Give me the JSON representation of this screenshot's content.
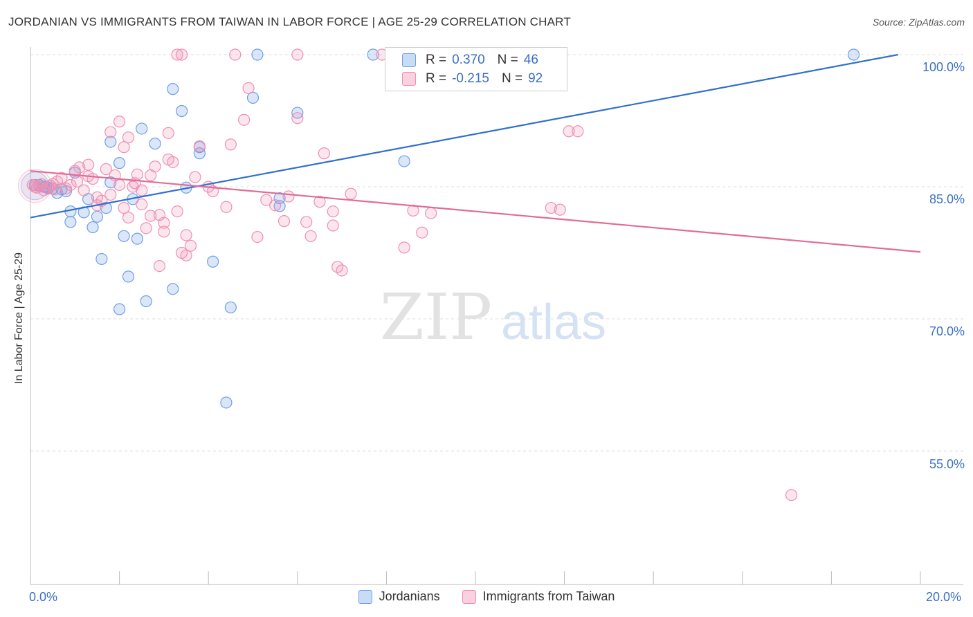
{
  "header": {
    "title": "JORDANIAN VS IMMIGRANTS FROM TAIWAN IN LABOR FORCE | AGE 25-29 CORRELATION CHART",
    "source": "Source: ZipAtlas.com"
  },
  "watermark": {
    "zip": "ZIP",
    "atlas": "atlas"
  },
  "legend": {
    "rows": [
      {
        "r_label": "R =",
        "r_value": "0.370",
        "n_label": "N =",
        "n_value": "46",
        "color": "#6f9fe6"
      },
      {
        "r_label": "R =",
        "r_value": "-0.215",
        "n_label": "N =",
        "n_value": "92",
        "color": "#f08fb0"
      }
    ]
  },
  "bottom_legend": {
    "series1": "Jordanians",
    "series2": "Immigrants from Taiwan"
  },
  "axes": {
    "x_min_label": "0.0%",
    "x_max_label": "20.0%",
    "y_ticks": [
      "100.0%",
      "85.0%",
      "70.0%",
      "55.0%"
    ],
    "ylabel": "In Labor Force | Age 25-29"
  },
  "chart_data": {
    "type": "scatter",
    "title": "JORDANIAN VS IMMIGRANTS FROM TAIWAN IN LABOR FORCE | AGE 25-29 CORRELATION CHART",
    "xlabel": "",
    "ylabel": "In Labor Force | Age 25-29",
    "xlim": [
      0,
      20
    ],
    "ylim": [
      40,
      101
    ],
    "y_gridlines": [
      100,
      85,
      70,
      55
    ],
    "series": [
      {
        "name": "Jordanians",
        "color": "#6f9fe6",
        "trend": {
          "x": [
            0,
            19.5
          ],
          "y": [
            81.5,
            100.0
          ]
        },
        "points": [
          [
            0.1,
            85.2
          ],
          [
            0.3,
            85.0
          ],
          [
            0.4,
            84.9
          ],
          [
            0.5,
            84.8
          ],
          [
            0.6,
            84.3
          ],
          [
            0.7,
            84.7
          ],
          [
            0.8,
            84.5
          ],
          [
            0.9,
            82.2
          ],
          [
            0.9,
            81.0
          ],
          [
            1.0,
            86.6
          ],
          [
            1.2,
            82.1
          ],
          [
            1.3,
            83.6
          ],
          [
            1.4,
            80.4
          ],
          [
            1.5,
            81.6
          ],
          [
            1.6,
            76.8
          ],
          [
            1.7,
            82.6
          ],
          [
            1.8,
            85.5
          ],
          [
            1.8,
            90.1
          ],
          [
            2.0,
            71.1
          ],
          [
            2.0,
            87.7
          ],
          [
            2.1,
            79.4
          ],
          [
            2.2,
            74.8
          ],
          [
            2.3,
            83.6
          ],
          [
            2.4,
            79.1
          ],
          [
            2.5,
            91.6
          ],
          [
            2.6,
            72.0
          ],
          [
            2.8,
            89.9
          ],
          [
            3.2,
            96.1
          ],
          [
            3.2,
            73.4
          ],
          [
            3.4,
            93.6
          ],
          [
            3.5,
            84.9
          ],
          [
            3.8,
            88.8
          ],
          [
            3.8,
            89.5
          ],
          [
            4.1,
            76.5
          ],
          [
            4.4,
            60.5
          ],
          [
            4.5,
            71.3
          ],
          [
            5.0,
            95.1
          ],
          [
            5.1,
            100.0
          ],
          [
            5.6,
            83.7
          ],
          [
            5.6,
            82.8
          ],
          [
            6.0,
            93.4
          ],
          [
            7.7,
            100.0
          ],
          [
            8.4,
            87.9
          ],
          [
            18.5,
            100.0
          ],
          [
            0.2,
            85.2
          ],
          [
            0.35,
            85.0
          ]
        ]
      },
      {
        "name": "Immigrants from Taiwan",
        "color": "#f08fb0",
        "trend": {
          "x": [
            0,
            20
          ],
          "y": [
            86.8,
            77.6
          ]
        },
        "points": [
          [
            0.05,
            85.2
          ],
          [
            0.1,
            85.0
          ],
          [
            0.2,
            85.1
          ],
          [
            0.3,
            84.6
          ],
          [
            0.4,
            84.8
          ],
          [
            0.5,
            85.3
          ],
          [
            0.6,
            85.6
          ],
          [
            0.7,
            86.0
          ],
          [
            0.8,
            84.8
          ],
          [
            0.9,
            85.2
          ],
          [
            1.0,
            86.8
          ],
          [
            1.1,
            87.2
          ],
          [
            1.2,
            84.6
          ],
          [
            1.3,
            86.2
          ],
          [
            1.3,
            87.5
          ],
          [
            1.4,
            85.9
          ],
          [
            1.5,
            82.9
          ],
          [
            1.5,
            83.8
          ],
          [
            1.6,
            83.4
          ],
          [
            1.7,
            87.0
          ],
          [
            1.8,
            84.1
          ],
          [
            1.8,
            91.2
          ],
          [
            1.9,
            86.3
          ],
          [
            2.0,
            85.2
          ],
          [
            2.0,
            92.4
          ],
          [
            2.1,
            89.5
          ],
          [
            2.1,
            82.6
          ],
          [
            2.2,
            81.5
          ],
          [
            2.2,
            90.6
          ],
          [
            2.3,
            85.0
          ],
          [
            2.4,
            86.4
          ],
          [
            2.5,
            84.6
          ],
          [
            2.5,
            83.0
          ],
          [
            2.6,
            80.3
          ],
          [
            2.7,
            81.7
          ],
          [
            2.7,
            86.3
          ],
          [
            2.8,
            87.3
          ],
          [
            2.9,
            76.0
          ],
          [
            2.9,
            81.8
          ],
          [
            3.0,
            80.9
          ],
          [
            3.0,
            79.9
          ],
          [
            3.1,
            88.1
          ],
          [
            3.1,
            91.1
          ],
          [
            3.2,
            87.8
          ],
          [
            3.3,
            82.2
          ],
          [
            3.3,
            100.0
          ],
          [
            3.4,
            77.5
          ],
          [
            3.5,
            77.2
          ],
          [
            3.5,
            79.5
          ],
          [
            3.6,
            78.3
          ],
          [
            3.7,
            86.1
          ],
          [
            3.8,
            89.6
          ],
          [
            4.4,
            82.7
          ],
          [
            4.5,
            89.8
          ],
          [
            4.6,
            100.0
          ],
          [
            4.8,
            92.6
          ],
          [
            4.9,
            96.2
          ],
          [
            5.1,
            79.3
          ],
          [
            5.3,
            83.5
          ],
          [
            5.5,
            82.9
          ],
          [
            5.7,
            81.1
          ],
          [
            6.0,
            92.8
          ],
          [
            6.0,
            100.0
          ],
          [
            6.2,
            81.0
          ],
          [
            6.3,
            79.4
          ],
          [
            6.5,
            83.3
          ],
          [
            6.6,
            88.8
          ],
          [
            6.8,
            82.2
          ],
          [
            6.8,
            80.6
          ],
          [
            6.9,
            75.9
          ],
          [
            7.0,
            75.5
          ],
          [
            7.2,
            84.2
          ],
          [
            7.9,
            100.0
          ],
          [
            8.4,
            78.1
          ],
          [
            8.6,
            82.3
          ],
          [
            8.8,
            79.8
          ],
          [
            9.0,
            82.0
          ],
          [
            11.7,
            82.6
          ],
          [
            11.9,
            82.4
          ],
          [
            12.1,
            91.3
          ],
          [
            12.3,
            91.3
          ],
          [
            17.1,
            50.0
          ],
          [
            3.4,
            100.0
          ],
          [
            4.1,
            84.5
          ],
          [
            4.0,
            85.0
          ],
          [
            0.15,
            84.9
          ],
          [
            0.25,
            85.3
          ],
          [
            0.45,
            85.1
          ],
          [
            0.55,
            84.7
          ],
          [
            1.05,
            85.6
          ],
          [
            2.35,
            85.4
          ],
          [
            5.8,
            83.9
          ]
        ]
      }
    ]
  }
}
